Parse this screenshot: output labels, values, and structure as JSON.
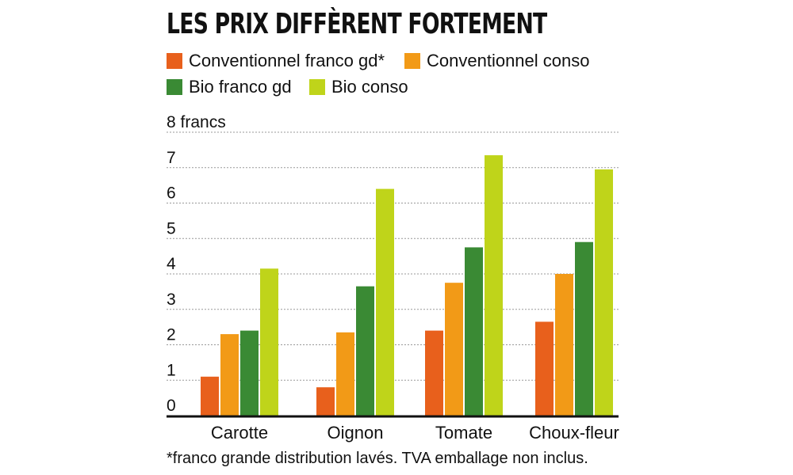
{
  "title": "LES PRIX DIFFÈRENT FORTEMENT",
  "footnote": "*franco grande distribution lavés. TVA emballage non inclus.",
  "colors": {
    "conv_franco": "#e8601c",
    "conv_conso": "#f29a17",
    "bio_franco": "#3a8a34",
    "bio_conso": "#bfd41a",
    "grid": "#999999",
    "axis": "#111111"
  },
  "chart_data": {
    "type": "bar",
    "title": "LES PRIX DIFFÈRENT FORTEMENT",
    "xlabel": "",
    "ylabel": "8 francs",
    "ylim": [
      0,
      8
    ],
    "y_ticks": [
      {
        "value": 0,
        "label": "0"
      },
      {
        "value": 1,
        "label": "1"
      },
      {
        "value": 2,
        "label": "2"
      },
      {
        "value": 3,
        "label": "3"
      },
      {
        "value": 4,
        "label": "4"
      },
      {
        "value": 5,
        "label": "5"
      },
      {
        "value": 6,
        "label": "6"
      },
      {
        "value": 7,
        "label": "7"
      },
      {
        "value": 8,
        "label": "8 francs"
      }
    ],
    "categories": [
      "Carotte",
      "Oignon",
      "Tomate",
      "Choux-fleur"
    ],
    "series": [
      {
        "key": "conv_franco",
        "name": "Conventionnel franco gd*",
        "values": [
          1.1,
          0.8,
          2.4,
          2.65
        ]
      },
      {
        "key": "conv_conso",
        "name": "Conventionnel conso",
        "values": [
          2.3,
          2.35,
          3.75,
          4.0
        ]
      },
      {
        "key": "bio_franco",
        "name": "Bio franco gd",
        "values": [
          2.4,
          3.65,
          4.75,
          4.9
        ]
      },
      {
        "key": "bio_conso",
        "name": "Bio conso",
        "values": [
          4.15,
          6.4,
          7.35,
          6.95
        ]
      }
    ],
    "grid": true,
    "legend": "top-left"
  }
}
